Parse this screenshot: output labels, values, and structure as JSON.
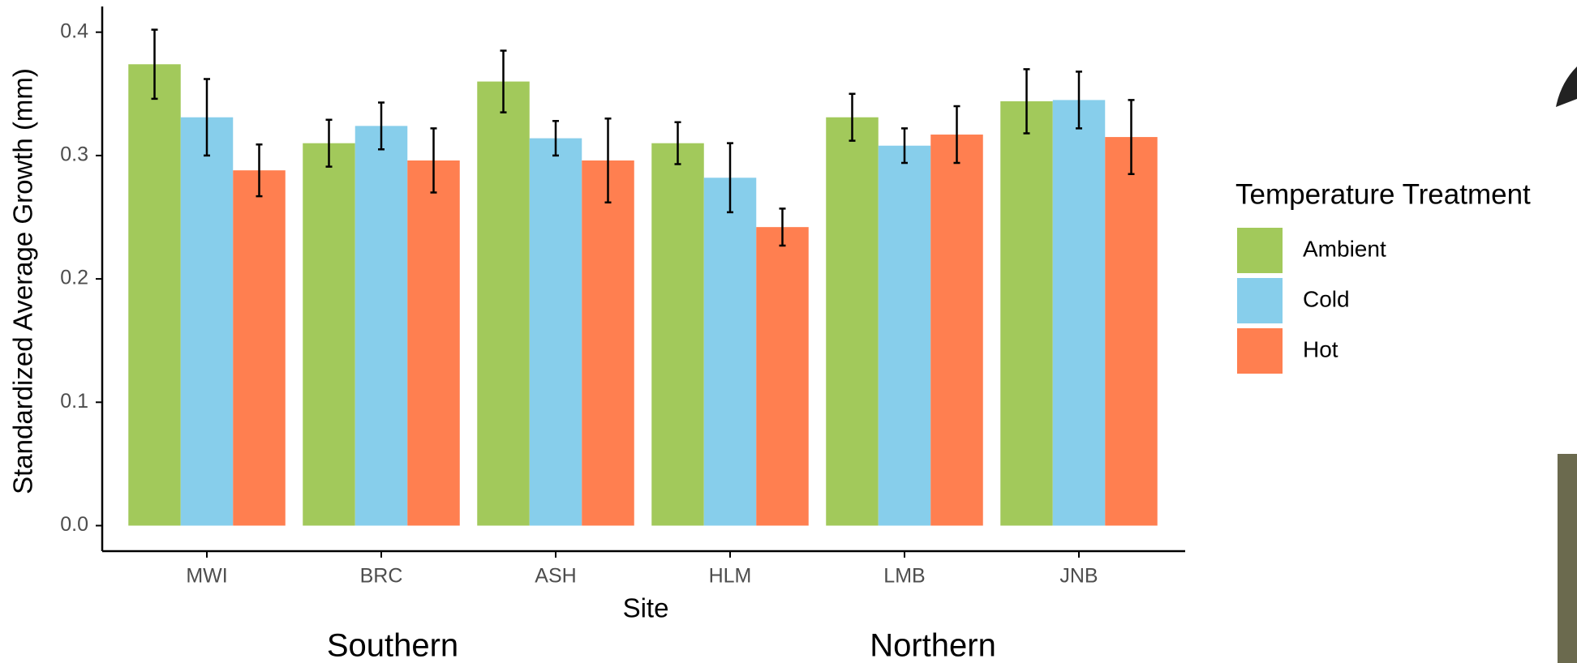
{
  "chart_data": {
    "type": "bar",
    "y_label": "Standardized Average Growth (mm)",
    "x_label": "Site",
    "categories": [
      "MWI",
      "BRC",
      "ASH",
      "HLM",
      "LMB",
      "JNB"
    ],
    "legend_title": "Temperature Treatment",
    "legend_position": "right",
    "series": [
      {
        "name": "Ambient",
        "color": "#a2c95b",
        "values": [
          0.374,
          0.31,
          0.36,
          0.31,
          0.331,
          0.344
        ],
        "errors": [
          0.028,
          0.019,
          0.025,
          0.017,
          0.019,
          0.026
        ]
      },
      {
        "name": "Cold",
        "color": "#87ceeb",
        "values": [
          0.331,
          0.324,
          0.314,
          0.282,
          0.308,
          0.345
        ],
        "errors": [
          0.031,
          0.019,
          0.014,
          0.028,
          0.014,
          0.023
        ]
      },
      {
        "name": "Hot",
        "color": "#ff7f50",
        "values": [
          0.288,
          0.296,
          0.296,
          0.242,
          0.317,
          0.315
        ],
        "errors": [
          0.021,
          0.026,
          0.034,
          0.015,
          0.023,
          0.03
        ]
      }
    ],
    "ylim": [
      0,
      0.4
    ],
    "yticks": [
      {
        "value": 0,
        "label": "0.0"
      },
      0.1,
      0.2,
      0.3,
      0.4
    ],
    "grid": false,
    "annotations": [
      "Southern",
      "Northern"
    ]
  }
}
